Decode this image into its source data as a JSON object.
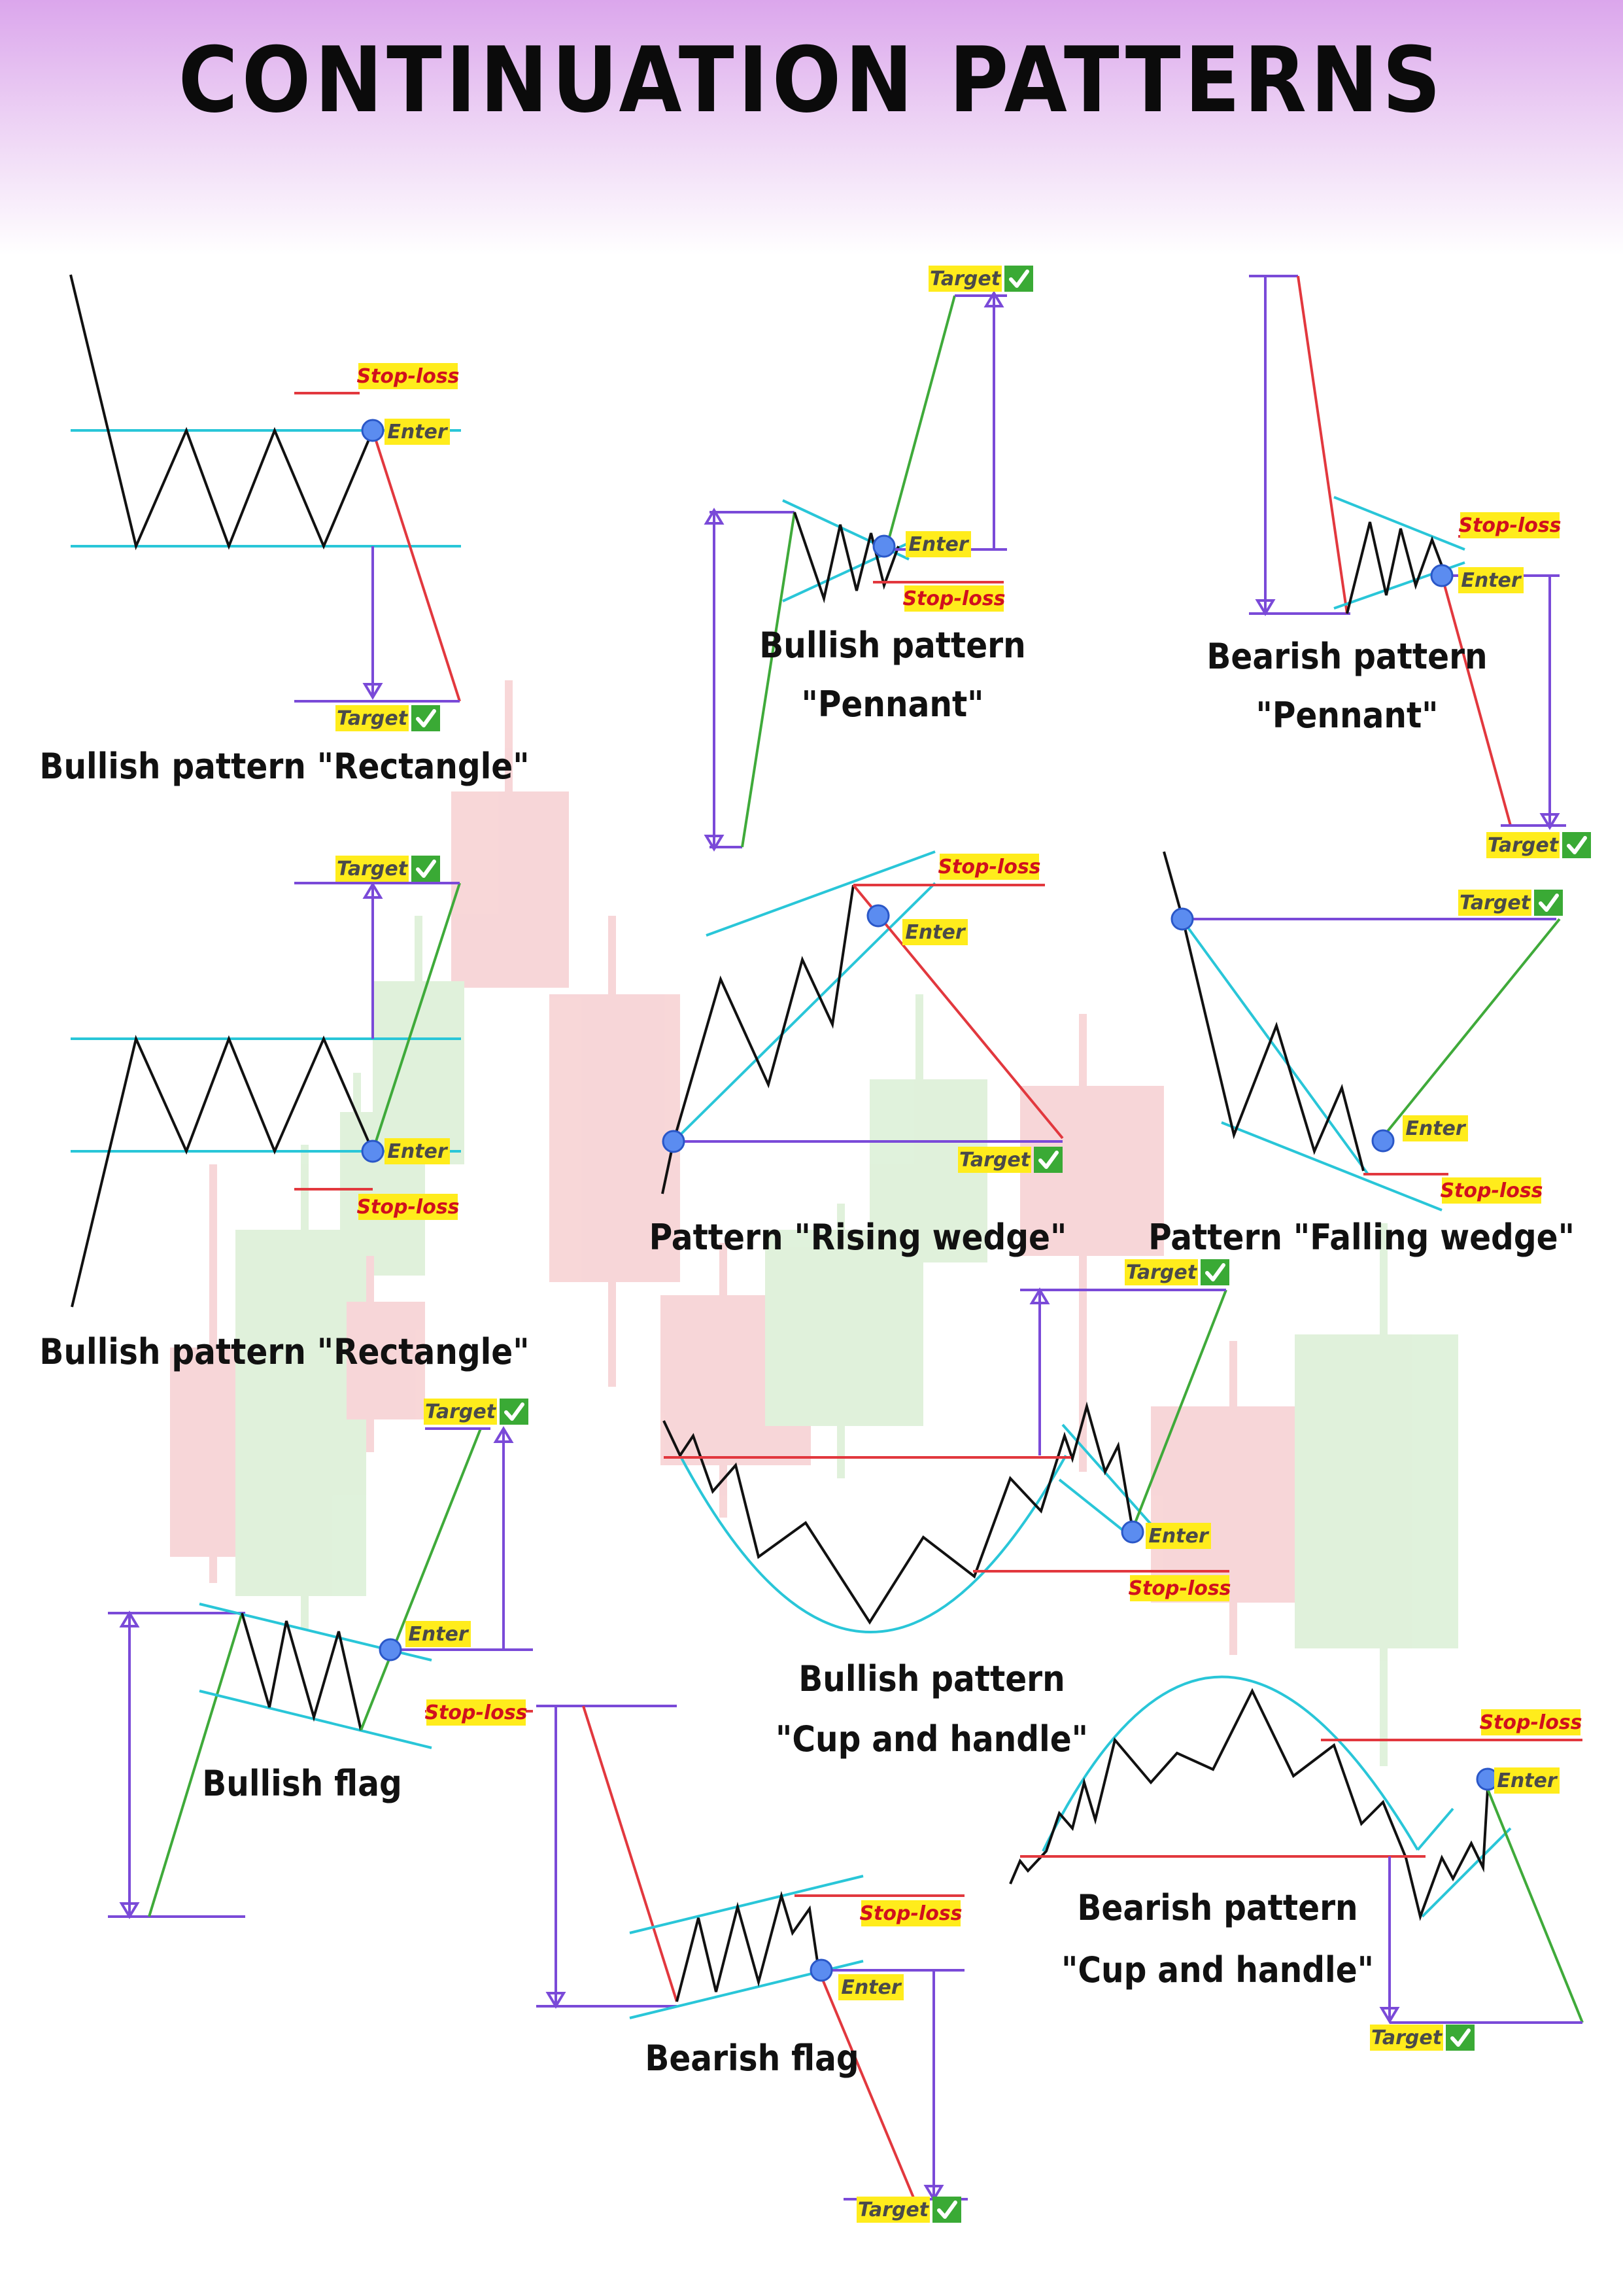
{
  "title": "CONTINUATION PATTERNS",
  "labels": {
    "target": "Target",
    "enter": "Enter",
    "stop_loss": "Stop-loss"
  },
  "colors": {
    "price_line": "#111111",
    "channel_line": "#29c6d8",
    "measure_line": "#7a4ad8",
    "bull_move": "#3faa3a",
    "bear_move": "#e2383e",
    "label_box": "#ffec1c",
    "stop_loss_text": "#d0101e",
    "check_badge": "#3aaa35",
    "header_gradient_top": "#dba6ec"
  },
  "icons": [
    "check-icon",
    "entry-point-icon",
    "measure-arrow-icon"
  ],
  "patterns": [
    {
      "id": "bullish-rectangle-1",
      "title_lines": [
        "Bullish pattern \"Rectangle\""
      ]
    },
    {
      "id": "bullish-pennant",
      "title_lines": [
        "Bullish pattern",
        "\"Pennant\""
      ]
    },
    {
      "id": "bearish-pennant",
      "title_lines": [
        "Bearish pattern",
        "\"Pennant\""
      ]
    },
    {
      "id": "bullish-rectangle-2",
      "title_lines": [
        "Bullish pattern \"Rectangle\""
      ]
    },
    {
      "id": "rising-wedge",
      "title_lines": [
        "Pattern \"Rising wedge\""
      ]
    },
    {
      "id": "falling-wedge",
      "title_lines": [
        "Pattern \"Falling wedge\""
      ]
    },
    {
      "id": "bullish-flag",
      "title_lines": [
        "Bullish flag"
      ]
    },
    {
      "id": "bullish-cup-and-handle",
      "title_lines": [
        "Bullish pattern",
        "\"Cup and handle\""
      ]
    },
    {
      "id": "bearish-flag",
      "title_lines": [
        "Bearish flag"
      ]
    },
    {
      "id": "bearish-cup-and-handle",
      "title_lines": [
        "Bearish pattern",
        "\"Cup and handle\""
      ]
    }
  ]
}
